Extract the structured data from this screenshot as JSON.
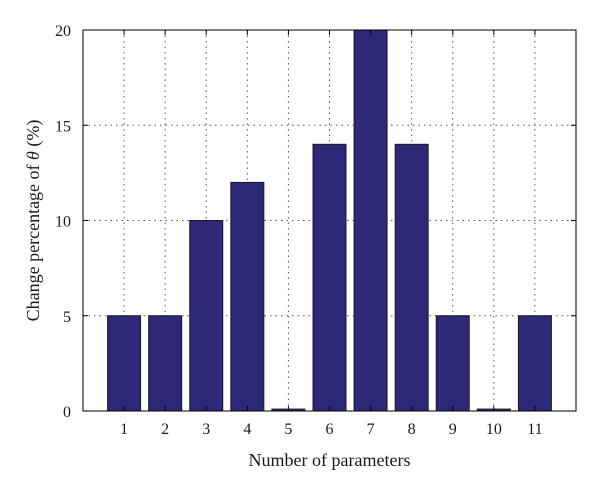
{
  "chart_data": {
    "type": "bar",
    "categories": [
      "1",
      "2",
      "3",
      "4",
      "5",
      "6",
      "7",
      "8",
      "9",
      "10",
      "11"
    ],
    "values": [
      5,
      5,
      10,
      12,
      0.1,
      14,
      20,
      14,
      5,
      0.1,
      5
    ],
    "xlabel": "Number of parameters",
    "ylabel_prefix": "Change percentage of ",
    "ylabel_symbol": "θ",
    "ylabel_suffix": " (%)",
    "ylim": [
      0,
      20
    ],
    "yticks": [
      "0",
      "5",
      "10",
      "15",
      "20"
    ],
    "grid": true,
    "bar_color": "#2e2878"
  }
}
